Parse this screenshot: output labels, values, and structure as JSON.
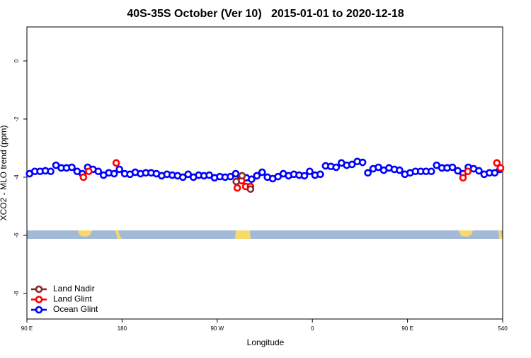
{
  "chart_data": {
    "type": "scatter",
    "title": "40S-35S October (Ver 10)   2015-01-01 to 2020-12-18",
    "x_label": "Longitude",
    "y_label": "XCO2 - MLO trend (ppm)",
    "xlim": [
      90,
      540
    ],
    "ylim": [
      -8.88,
      1.17
    ],
    "xticks": [
      {
        "value": 90,
        "label": "90 E"
      },
      180,
      {
        "value": 270,
        "label": "90 W"
      },
      {
        "value": 360,
        "label": "0"
      },
      {
        "value": 450,
        "label": "90 E"
      },
      540
    ],
    "yticks": [
      0,
      -2,
      -4,
      -6,
      -8
    ],
    "legend": "bottom-left",
    "series": [
      {
        "name": "Land Nadir",
        "color": "#8b2a2a",
        "x": [
          288,
          293.5,
          301.5
        ],
        "values": [
          -4.15,
          -3.95,
          -4.41
        ]
      },
      {
        "name": "Land Glint",
        "color": "#ff0000",
        "x": [
          143.5,
          148.5,
          174.5,
          289,
          293,
          297,
          301.5,
          502.5,
          507,
          534.5,
          538
        ],
        "values": [
          -4.0,
          -3.8,
          -3.51,
          -4.37,
          -4.12,
          -4.32,
          -4.32,
          -4.02,
          -3.8,
          -3.51,
          -3.68
        ]
      },
      {
        "name": "Ocean Glint",
        "color": "#0000ff",
        "x": [
          92.5,
          97.5,
          102.5,
          107.5,
          112.5,
          117.5,
          122.5,
          127.5,
          132.5,
          137.5,
          142.5,
          147.5,
          152.5,
          157.5,
          162.5,
          167.5,
          172.5,
          177.5,
          182.5,
          187.5,
          192.5,
          197.5,
          202.5,
          207.5,
          212.5,
          217.5,
          222.5,
          227.5,
          232.5,
          237.5,
          242.5,
          247.5,
          252.5,
          257.5,
          262.5,
          267.5,
          272.5,
          277.5,
          282.5,
          287.5,
          292.5,
          297.5,
          302.5,
          307.5,
          312.5,
          317.5,
          322.5,
          327.5,
          332.5,
          337.5,
          342.5,
          347.5,
          352.5,
          357.5,
          362.5,
          367.5,
          372.5,
          377.5,
          382.5,
          387.5,
          392.5,
          397.5,
          402.5,
          407.5,
          412.5,
          417.5,
          422.5,
          427.5,
          432.5,
          437.5,
          442.5,
          447.5,
          452.5,
          457.5,
          462.5,
          467.5,
          472.5,
          477.5,
          482.5,
          487.5,
          492.5,
          497.5,
          502.5,
          507.5,
          512.5,
          517.5,
          522.5,
          527.5,
          532.5,
          537.5
        ],
        "values": [
          -3.88,
          -3.8,
          -3.8,
          -3.78,
          -3.8,
          -3.59,
          -3.68,
          -3.68,
          -3.66,
          -3.8,
          -3.88,
          -3.66,
          -3.73,
          -3.8,
          -3.93,
          -3.85,
          -3.88,
          -3.73,
          -3.88,
          -3.9,
          -3.83,
          -3.88,
          -3.85,
          -3.85,
          -3.88,
          -3.95,
          -3.9,
          -3.93,
          -3.95,
          -4.0,
          -3.9,
          -4.0,
          -3.93,
          -3.95,
          -3.93,
          -4.02,
          -3.98,
          -4.0,
          -3.98,
          -3.88,
          -4.02,
          -4.02,
          -4.07,
          -3.95,
          -3.83,
          -4.0,
          -4.05,
          -3.98,
          -3.88,
          -3.95,
          -3.9,
          -3.93,
          -3.95,
          -3.8,
          -3.93,
          -3.9,
          -3.61,
          -3.63,
          -3.66,
          -3.51,
          -3.59,
          -3.56,
          -3.46,
          -3.49,
          -3.85,
          -3.71,
          -3.66,
          -3.76,
          -3.68,
          -3.73,
          -3.76,
          -3.9,
          -3.85,
          -3.8,
          -3.8,
          -3.8,
          -3.8,
          -3.59,
          -3.68,
          -3.68,
          -3.66,
          -3.78,
          -3.88,
          -3.66,
          -3.71,
          -3.78,
          -3.9,
          -3.85,
          -3.85,
          -3.73
        ]
      }
    ]
  }
}
